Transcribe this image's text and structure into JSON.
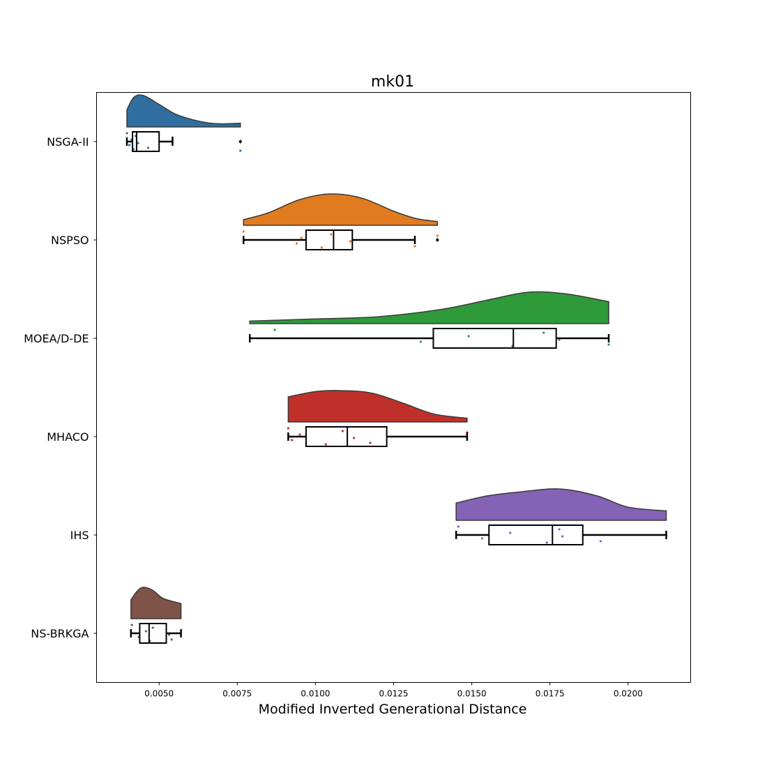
{
  "chart_data": {
    "type": "raincloud",
    "orientation": "horizontal",
    "title": "mk01",
    "xlabel": "Modified Inverted Generational Distance",
    "ylabel": "",
    "xlim": [
      0.003,
      0.022
    ],
    "xticks": [
      {
        "value": 0.005,
        "label": "0.0050"
      },
      {
        "value": 0.0075,
        "label": "0.0075"
      },
      {
        "value": 0.01,
        "label": "0.0100"
      },
      {
        "value": 0.0125,
        "label": "0.0125"
      },
      {
        "value": 0.015,
        "label": "0.0150"
      },
      {
        "value": 0.0175,
        "label": "0.0175"
      },
      {
        "value": 0.02,
        "label": "0.0200"
      }
    ],
    "grid": false,
    "categories": [
      "NSGA-II",
      "NSPSO",
      "MOEA/D-DE",
      "MHACO",
      "IHS",
      "NS-BRKGA"
    ],
    "series": [
      {
        "name": "NSGA-II",
        "color": "#2f6e9e",
        "box": {
          "whislo": 0.00397,
          "q1": 0.00415,
          "med": 0.00428,
          "q3": 0.005,
          "whishi": 0.00543
        },
        "outliers": [
          0.0076
        ],
        "points": [
          0.00397,
          0.00405,
          0.00412,
          0.00418,
          0.00425,
          0.00433,
          0.00465,
          0.00543,
          0.0076
        ],
        "density": [
          [
            0.00397,
            0.55
          ],
          [
            0.0042,
            0.95
          ],
          [
            0.0045,
            1.0
          ],
          [
            0.005,
            0.72
          ],
          [
            0.0055,
            0.42
          ],
          [
            0.006,
            0.25
          ],
          [
            0.0065,
            0.14
          ],
          [
            0.007,
            0.1
          ],
          [
            0.0076,
            0.12
          ]
        ]
      },
      {
        "name": "NSPSO",
        "color": "#e07b1f",
        "box": {
          "whislo": 0.0077,
          "q1": 0.0097,
          "med": 0.01058,
          "q3": 0.01118,
          "whishi": 0.01318
        },
        "outliers": [
          0.0139
        ],
        "points": [
          0.0077,
          0.0094,
          0.00955,
          0.0102,
          0.0105,
          0.01112,
          0.01318,
          0.0139
        ],
        "density": [
          [
            0.0077,
            0.18
          ],
          [
            0.0085,
            0.4
          ],
          [
            0.0095,
            0.82
          ],
          [
            0.0105,
            1.0
          ],
          [
            0.0115,
            0.86
          ],
          [
            0.0125,
            0.45
          ],
          [
            0.0132,
            0.22
          ],
          [
            0.0139,
            0.12
          ]
        ]
      },
      {
        "name": "MOEA/D-DE",
        "color": "#2e9a3a",
        "box": {
          "whislo": 0.0079,
          "q1": 0.01377,
          "med": 0.01633,
          "q3": 0.0177,
          "whishi": 0.01938
        },
        "outliers": [],
        "points": [
          0.0087,
          0.01337,
          0.0149,
          0.0163,
          0.0173,
          0.0178,
          0.01938
        ],
        "density": [
          [
            0.0079,
            0.08
          ],
          [
            0.01,
            0.15
          ],
          [
            0.012,
            0.22
          ],
          [
            0.014,
            0.45
          ],
          [
            0.0155,
            0.75
          ],
          [
            0.0168,
            1.0
          ],
          [
            0.018,
            0.95
          ],
          [
            0.01938,
            0.7
          ]
        ]
      },
      {
        "name": "MHACO",
        "color": "#c0302a",
        "box": {
          "whislo": 0.00913,
          "q1": 0.0097,
          "med": 0.01102,
          "q3": 0.01228,
          "whishi": 0.01485
        },
        "outliers": [],
        "points": [
          0.00913,
          0.00925,
          0.0095,
          0.01033,
          0.01087,
          0.01123,
          0.01175,
          0.01485
        ],
        "density": [
          [
            0.00913,
            0.8
          ],
          [
            0.01,
            0.97
          ],
          [
            0.0108,
            1.0
          ],
          [
            0.0118,
            0.92
          ],
          [
            0.0128,
            0.6
          ],
          [
            0.0138,
            0.25
          ],
          [
            0.01485,
            0.12
          ]
        ]
      },
      {
        "name": "IHS",
        "color": "#8462b5",
        "box": {
          "whislo": 0.0145,
          "q1": 0.01555,
          "med": 0.01758,
          "q3": 0.01855,
          "whishi": 0.02122
        },
        "outliers": [],
        "points": [
          0.01457,
          0.01533,
          0.01623,
          0.0174,
          0.0178,
          0.0179,
          0.01912
        ],
        "density": [
          [
            0.0145,
            0.55
          ],
          [
            0.0155,
            0.78
          ],
          [
            0.0165,
            0.9
          ],
          [
            0.0178,
            1.0
          ],
          [
            0.019,
            0.78
          ],
          [
            0.02,
            0.42
          ],
          [
            0.02122,
            0.3
          ]
        ]
      },
      {
        "name": "NS-BRKGA",
        "color": "#7f5348",
        "box": {
          "whislo": 0.0041,
          "q1": 0.00438,
          "med": 0.00468,
          "q3": 0.00523,
          "whishi": 0.0057
        },
        "outliers": [],
        "points": [
          0.00413,
          0.00435,
          0.00458,
          0.0047,
          0.0048,
          0.00532,
          0.0054
        ],
        "density": [
          [
            0.0041,
            0.6
          ],
          [
            0.0043,
            0.88
          ],
          [
            0.0045,
            1.0
          ],
          [
            0.0048,
            0.9
          ],
          [
            0.0051,
            0.66
          ],
          [
            0.0054,
            0.56
          ],
          [
            0.0057,
            0.48
          ]
        ]
      }
    ]
  }
}
